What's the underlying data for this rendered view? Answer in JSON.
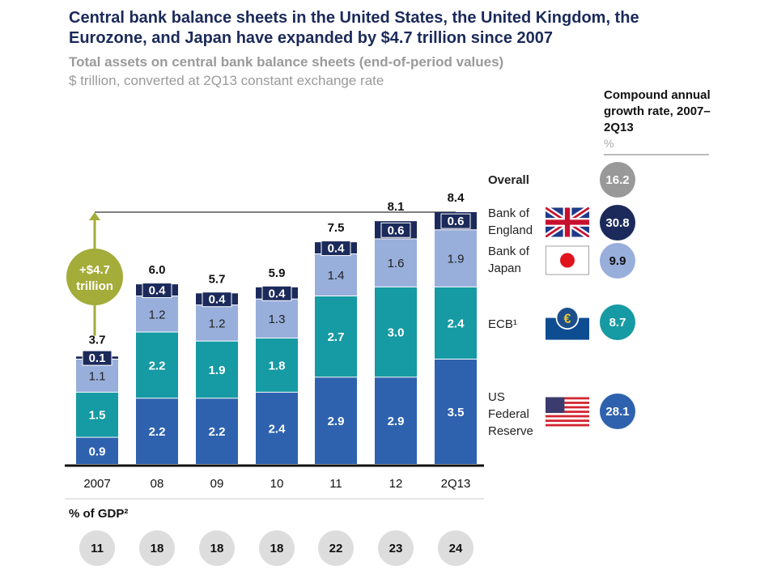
{
  "title": "Central bank balance sheets in the United States, the United Kingdom, the Eurozone, and Japan have expanded by $4.7 trillion since 2007",
  "subtitle": "Total assets on central bank balance sheets (end-of-period values)",
  "unit_note": "$ trillion, converted at 2Q13 constant exchange rate",
  "cagr": {
    "header": "Compound annual growth rate, 2007–2Q13",
    "unit": "%",
    "overall_label": "Overall",
    "overall_value": "16.2",
    "items": [
      {
        "label": "Bank of England",
        "value": "30.8",
        "flag": "uk-flag",
        "color": "#1B2A5A"
      },
      {
        "label": "Bank of Japan",
        "value": "9.9",
        "flag": "japan-flag",
        "color": "#98AEDB"
      },
      {
        "label": "ECB¹",
        "value": "8.7",
        "flag": "ecb-logo",
        "color": "#169AA3"
      },
      {
        "label": "US Federal Reserve",
        "value": "28.1",
        "flag": "us-flag",
        "color": "#2E62AE"
      }
    ]
  },
  "annotation": {
    "line1": "+$4.7",
    "line2": "trillion",
    "color": "#A4AC3A"
  },
  "gdp": {
    "label": "% of GDP²",
    "values": [
      "11",
      "18",
      "18",
      "18",
      "22",
      "23",
      "24"
    ]
  },
  "chart_data": {
    "type": "bar",
    "stacked": true,
    "categories": [
      "2007",
      "08",
      "09",
      "10",
      "11",
      "12",
      "2Q13"
    ],
    "series": [
      {
        "name": "US Federal Reserve",
        "color": "#2E62AE",
        "values": [
          0.9,
          2.2,
          2.2,
          2.4,
          2.9,
          2.9,
          3.5
        ]
      },
      {
        "name": "ECB",
        "color": "#169AA3",
        "values": [
          1.5,
          2.2,
          1.9,
          1.8,
          2.7,
          3.0,
          2.4
        ]
      },
      {
        "name": "Bank of Japan",
        "color": "#98AEDB",
        "values": [
          1.1,
          1.2,
          1.2,
          1.3,
          1.4,
          1.6,
          1.9
        ]
      },
      {
        "name": "Bank of England",
        "color": "#1B2A5A",
        "values": [
          0.1,
          0.4,
          0.4,
          0.4,
          0.4,
          0.6,
          0.6
        ]
      }
    ],
    "totals": [
      "3.7",
      "6.0",
      "5.7",
      "5.9",
      "7.5",
      "8.1",
      "8.4"
    ],
    "ylim": [
      0,
      8.4
    ],
    "ylabel": "$ trillion",
    "grid": false
  }
}
